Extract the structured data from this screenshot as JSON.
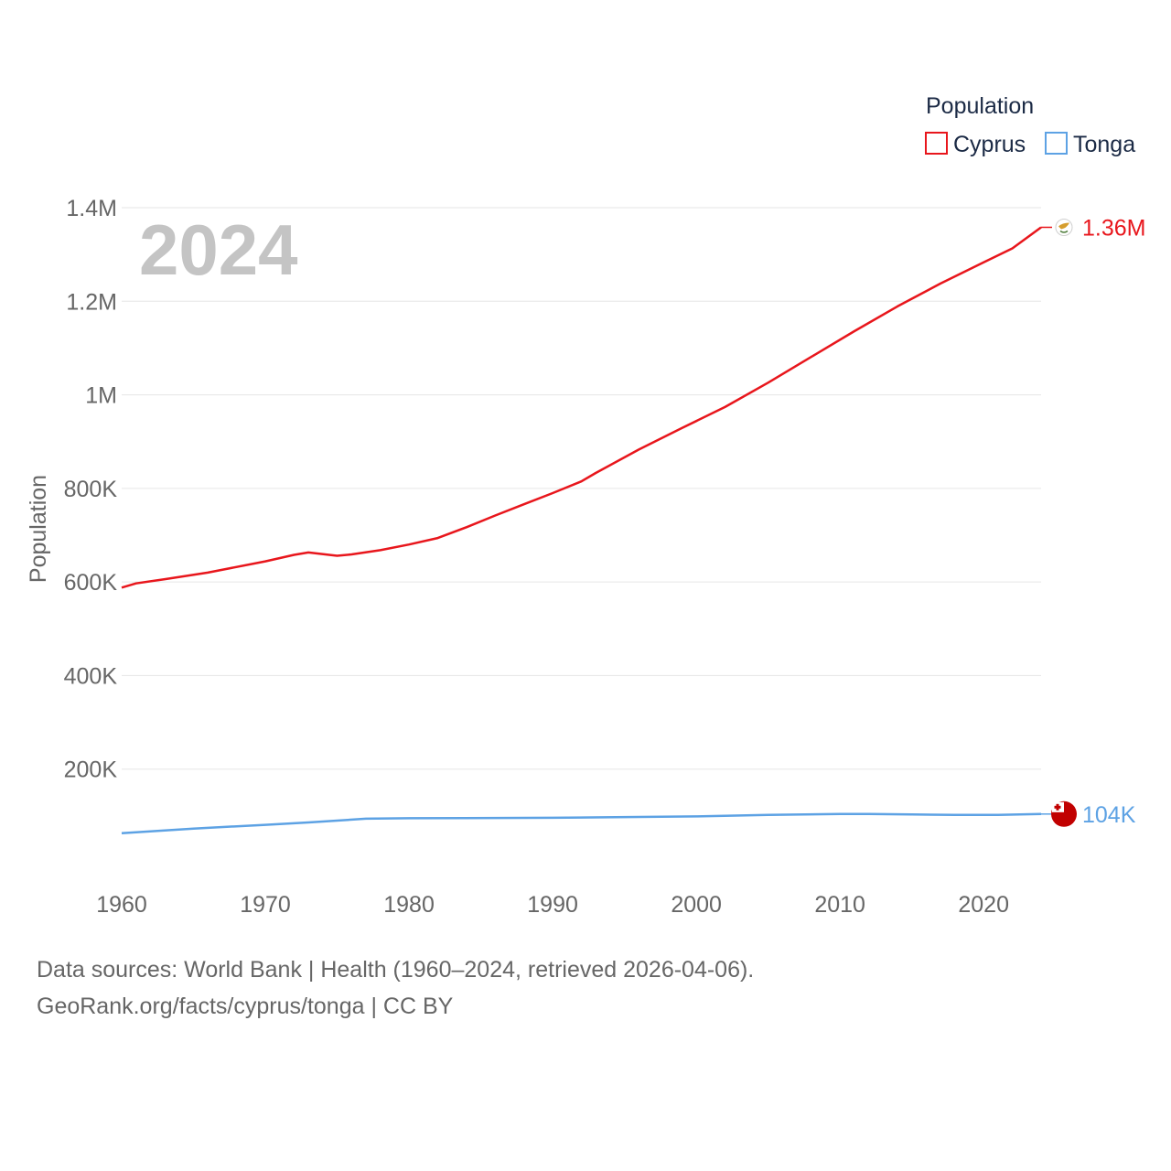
{
  "chart_data": {
    "type": "line",
    "title": "",
    "ylabel": "Population",
    "xlabel": "",
    "xlim": [
      1960,
      2024
    ],
    "ylim": [
      0,
      1400000
    ],
    "x_ticks": [
      1960,
      1970,
      1980,
      1990,
      2000,
      2010,
      2020
    ],
    "x_tick_labels": [
      "1960",
      "1970",
      "1980",
      "1990",
      "2000",
      "2010",
      "2020"
    ],
    "y_ticks": [
      200000,
      400000,
      600000,
      800000,
      1000000,
      1200000,
      1400000
    ],
    "y_tick_labels": [
      "200K",
      "400K",
      "600K",
      "800K",
      "1M",
      "1.2M",
      "1.4M"
    ],
    "year_watermark": "2024",
    "legend": {
      "title": "Population",
      "position": "top-right"
    },
    "series": [
      {
        "name": "Cyprus",
        "color": "#e8161c",
        "end_label": "1.36M",
        "flag_icon": "cyprus-flag-icon",
        "points": [
          [
            1960,
            588000
          ],
          [
            1961,
            597000
          ],
          [
            1963,
            606000
          ],
          [
            1966,
            620000
          ],
          [
            1970,
            644000
          ],
          [
            1972,
            658000
          ],
          [
            1973,
            663000
          ],
          [
            1975,
            656000
          ],
          [
            1976,
            659000
          ],
          [
            1978,
            668000
          ],
          [
            1980,
            680000
          ],
          [
            1982,
            694000
          ],
          [
            1984,
            717000
          ],
          [
            1986,
            742000
          ],
          [
            1988,
            766000
          ],
          [
            1990,
            790000
          ],
          [
            1992,
            815000
          ],
          [
            1993,
            833000
          ],
          [
            1996,
            883000
          ],
          [
            1999,
            929000
          ],
          [
            2002,
            974000
          ],
          [
            2005,
            1026000
          ],
          [
            2008,
            1081000
          ],
          [
            2011,
            1136000
          ],
          [
            2014,
            1189000
          ],
          [
            2017,
            1238000
          ],
          [
            2020,
            1283000
          ],
          [
            2022,
            1313000
          ],
          [
            2024,
            1358000
          ]
        ]
      },
      {
        "name": "Tonga",
        "color": "#5da2e4",
        "end_label": "104K",
        "flag_icon": "tonga-flag-icon",
        "points": [
          [
            1960,
            63000
          ],
          [
            1965,
            73000
          ],
          [
            1970,
            81000
          ],
          [
            1973,
            86000
          ],
          [
            1977,
            94000
          ],
          [
            1980,
            95000
          ],
          [
            1990,
            96000
          ],
          [
            2000,
            99000
          ],
          [
            2005,
            102000
          ],
          [
            2010,
            104000
          ],
          [
            2012,
            104000
          ],
          [
            2015,
            103000
          ],
          [
            2018,
            102000
          ],
          [
            2021,
            102000
          ],
          [
            2024,
            104000
          ]
        ]
      }
    ]
  },
  "footer": {
    "line1": "Data sources: World Bank | Health (1960–2024, retrieved 2026-04-06).",
    "line2": "GeoRank.org/facts/cyprus/tonga | CC BY"
  }
}
